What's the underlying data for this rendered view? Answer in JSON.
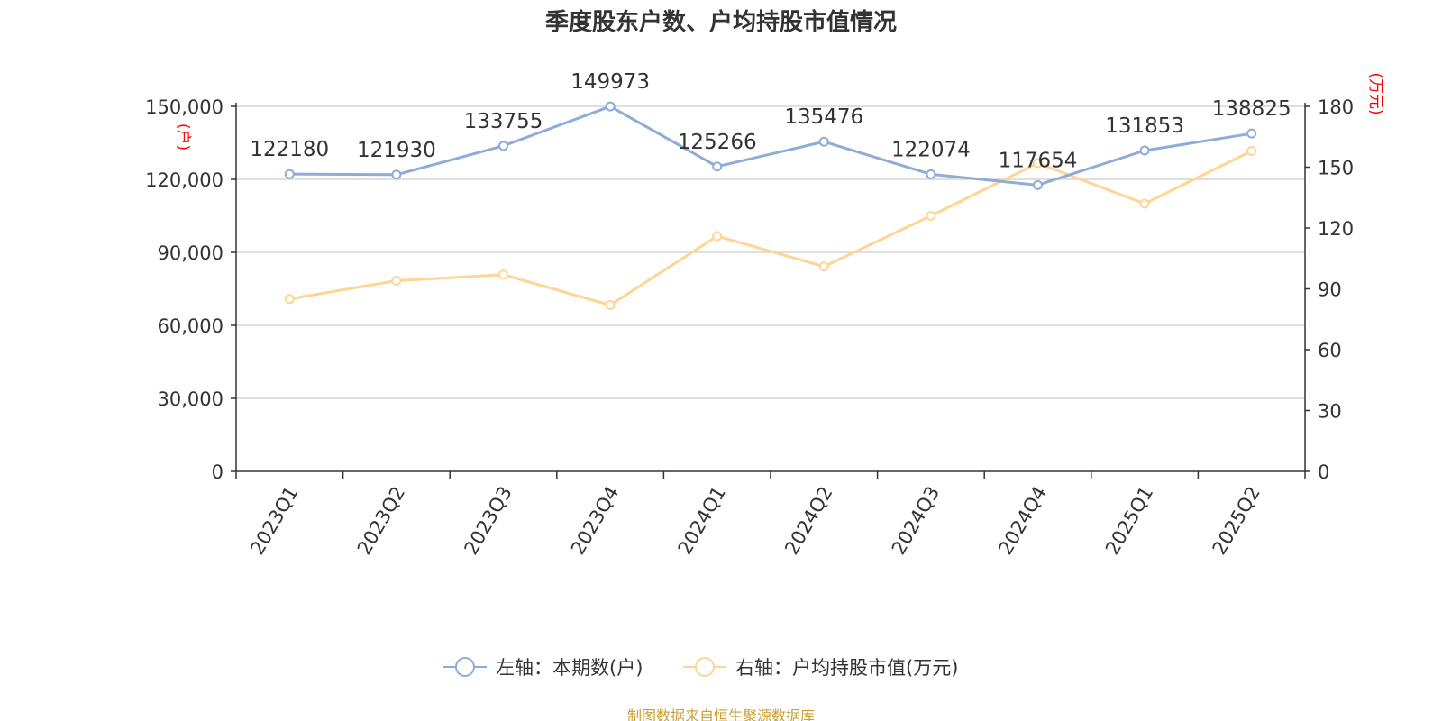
{
  "chart_data": {
    "type": "line",
    "title": "季度股东户数、户均持股市值情况",
    "categories": [
      "2023Q1",
      "2023Q2",
      "2023Q3",
      "2023Q4",
      "2024Q1",
      "2024Q2",
      "2024Q3",
      "2024Q4",
      "2025Q1",
      "2025Q2"
    ],
    "left_axis": {
      "label": "(户)",
      "ylim": [
        0,
        150000
      ],
      "ticks": [
        "0",
        "30,000",
        "60,000",
        "90,000",
        "120,000",
        "150,000"
      ],
      "tick_values": [
        0,
        30000,
        60000,
        90000,
        120000,
        150000
      ]
    },
    "right_axis": {
      "label": "(万元)",
      "ylim": [
        0,
        180
      ],
      "ticks": [
        "0",
        "30",
        "60",
        "90",
        "120",
        "150",
        "180"
      ],
      "tick_values": [
        0,
        30,
        60,
        90,
        120,
        150,
        180
      ]
    },
    "series": [
      {
        "name": "左轴：本期数(户)",
        "axis": "left",
        "color": "#8eacd8",
        "values": [
          122180,
          121930,
          133755,
          149973,
          125266,
          135476,
          122074,
          117654,
          131853,
          138825
        ],
        "data_labels": [
          "122180",
          "121930",
          "133755",
          "149973",
          "125266",
          "135476",
          "122074",
          "117654",
          "131853",
          "138825"
        ]
      },
      {
        "name": "右轴：户均持股市值(万元)",
        "axis": "right",
        "color": "#fdd594",
        "values": [
          85,
          94,
          97,
          82,
          116,
          101,
          126,
          152,
          132,
          158
        ]
      }
    ],
    "legend_position": "bottom",
    "grid": true
  },
  "axis_label_color": "#ff0000",
  "source": "制图数据来自恒生聚源数据库"
}
